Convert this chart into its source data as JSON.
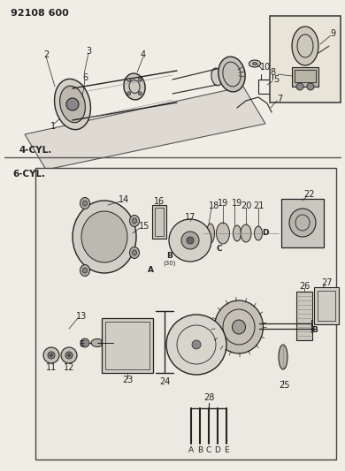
{
  "title": "92108 600",
  "bg_color": "#f0ede4",
  "white": "#ffffff",
  "black": "#222222",
  "gray": "#888888",
  "light_gray": "#cccccc",
  "section1_label": "4-CYL.",
  "section2_label": "6-CYL.",
  "fig_width": 3.9,
  "fig_height": 5.33,
  "dpi": 100
}
